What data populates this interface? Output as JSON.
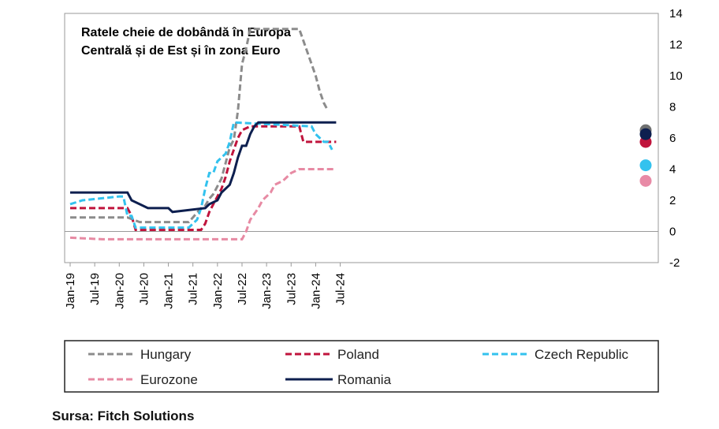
{
  "chart_data": {
    "type": "line",
    "title": "Ratele cheie de dobândă în Europa Centrală și de Est și în zona Euro",
    "title_lines": [
      "Ratele cheie de dobândă în Europa",
      "Centrală și de Est și în zona Euro"
    ],
    "x_tick_labels": [
      "Jan-19",
      "Jul-19",
      "Jan-20",
      "Jul-20",
      "Jan-21",
      "Jul-21",
      "Jan-22",
      "Jul-22",
      "Jan-23",
      "Jul-23",
      "Jan-24",
      "Jul-24"
    ],
    "y_tick_labels": [
      "14",
      "12",
      "10",
      "8",
      "6",
      "4",
      "2",
      "0",
      "-2"
    ],
    "ylim": [
      -2,
      14
    ],
    "y_axis_position": "right",
    "zero_line": true,
    "legend_position": "bottom",
    "source": "Sursa: Fitch Solutions",
    "series": [
      {
        "name": "Hungary",
        "color": "#8c8c8c",
        "dash": true,
        "points": [
          [
            "2019-01",
            0.9
          ],
          [
            "2020-03",
            0.9
          ],
          [
            "2020-06",
            0.6
          ],
          [
            "2021-06",
            0.6
          ],
          [
            "2021-07",
            0.9
          ],
          [
            "2021-08",
            1.2
          ],
          [
            "2021-09",
            1.5
          ],
          [
            "2021-10",
            1.65
          ],
          [
            "2021-11",
            2.1
          ],
          [
            "2021-12",
            2.4
          ],
          [
            "2022-01",
            2.9
          ],
          [
            "2022-02",
            3.4
          ],
          [
            "2022-03",
            4.4
          ],
          [
            "2022-04",
            5.4
          ],
          [
            "2022-05",
            5.9
          ],
          [
            "2022-06",
            7.75
          ],
          [
            "2022-07",
            10.75
          ],
          [
            "2022-08",
            11.75
          ],
          [
            "2022-09",
            13.0
          ],
          [
            "2023-09",
            13.0
          ],
          [
            "2023-10",
            12.25
          ],
          [
            "2023-11",
            11.5
          ],
          [
            "2023-12",
            10.75
          ],
          [
            "2024-01",
            10.0
          ],
          [
            "2024-02",
            9.0
          ],
          [
            "2024-03",
            8.25
          ],
          [
            "2024-04",
            7.75
          ]
        ],
        "end_marker": 6.5
      },
      {
        "name": "Poland",
        "color": "#c0143c",
        "dash": true,
        "points": [
          [
            "2019-01",
            1.5
          ],
          [
            "2020-03",
            1.5
          ],
          [
            "2020-04",
            1.0
          ],
          [
            "2020-05",
            0.1
          ],
          [
            "2021-09",
            0.1
          ],
          [
            "2021-10",
            0.5
          ],
          [
            "2021-11",
            1.25
          ],
          [
            "2021-12",
            1.75
          ],
          [
            "2022-01",
            2.25
          ],
          [
            "2022-02",
            2.75
          ],
          [
            "2022-03",
            3.5
          ],
          [
            "2022-04",
            4.5
          ],
          [
            "2022-05",
            5.25
          ],
          [
            "2022-06",
            6.0
          ],
          [
            "2022-07",
            6.5
          ],
          [
            "2022-09",
            6.75
          ],
          [
            "2023-09",
            6.75
          ],
          [
            "2023-10",
            5.75
          ],
          [
            "2024-06",
            5.75
          ]
        ],
        "end_marker": 5.75
      },
      {
        "name": "Czech Republic",
        "color": "#33c2ee",
        "dash": true,
        "points": [
          [
            "2019-01",
            1.75
          ],
          [
            "2019-04",
            2.0
          ],
          [
            "2020-01",
            2.25
          ],
          [
            "2020-02",
            2.25
          ],
          [
            "2020-03",
            1.0
          ],
          [
            "2020-04",
            1.0
          ],
          [
            "2020-05",
            0.25
          ],
          [
            "2021-06",
            0.25
          ],
          [
            "2021-07",
            0.5
          ],
          [
            "2021-08",
            0.75
          ],
          [
            "2021-09",
            1.5
          ],
          [
            "2021-10",
            2.75
          ],
          [
            "2021-11",
            3.75
          ],
          [
            "2021-12",
            3.75
          ],
          [
            "2022-01",
            4.5
          ],
          [
            "2022-03",
            5.0
          ],
          [
            "2022-04",
            5.75
          ],
          [
            "2022-05",
            7.0
          ],
          [
            "2023-12",
            6.75
          ],
          [
            "2024-01",
            6.25
          ],
          [
            "2024-03",
            5.75
          ],
          [
            "2024-04",
            5.75
          ],
          [
            "2024-05",
            5.25
          ]
        ],
        "end_marker": 4.25
      },
      {
        "name": "Eurozone",
        "color": "#e78aa3",
        "dash": true,
        "points": [
          [
            "2019-01",
            -0.4
          ],
          [
            "2019-09",
            -0.5
          ],
          [
            "2022-07",
            -0.5
          ],
          [
            "2022-08",
            0.0
          ],
          [
            "2022-09",
            0.75
          ],
          [
            "2022-11",
            1.5
          ],
          [
            "2022-12",
            2.0
          ],
          [
            "2023-02",
            2.5
          ],
          [
            "2023-03",
            3.0
          ],
          [
            "2023-05",
            3.25
          ],
          [
            "2023-06",
            3.5
          ],
          [
            "2023-07",
            3.75
          ],
          [
            "2023-09",
            4.0
          ],
          [
            "2024-06",
            4.0
          ]
        ],
        "end_marker": 3.25
      },
      {
        "name": "Romania",
        "color": "#0d1f4f",
        "dash": false,
        "points": [
          [
            "2019-01",
            2.5
          ],
          [
            "2020-03",
            2.5
          ],
          [
            "2020-04",
            2.0
          ],
          [
            "2020-06",
            1.75
          ],
          [
            "2020-08",
            1.5
          ],
          [
            "2021-01",
            1.5
          ],
          [
            "2021-02",
            1.25
          ],
          [
            "2021-10",
            1.5
          ],
          [
            "2021-11",
            1.75
          ],
          [
            "2022-01",
            2.0
          ],
          [
            "2022-02",
            2.5
          ],
          [
            "2022-04",
            3.0
          ],
          [
            "2022-05",
            3.75
          ],
          [
            "2022-06",
            4.75
          ],
          [
            "2022-07",
            5.5
          ],
          [
            "2022-08",
            5.5
          ],
          [
            "2022-09",
            6.25
          ],
          [
            "2022-10",
            6.75
          ],
          [
            "2022-11",
            7.0
          ],
          [
            "2024-06",
            7.0
          ]
        ],
        "end_marker": 6.25
      }
    ]
  }
}
